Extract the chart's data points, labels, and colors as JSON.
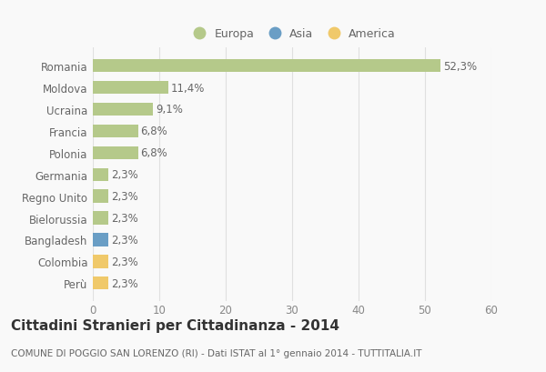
{
  "categories": [
    "Romania",
    "Moldova",
    "Ucraina",
    "Francia",
    "Polonia",
    "Germania",
    "Regno Unito",
    "Bielorussia",
    "Bangladesh",
    "Colombia",
    "Perù"
  ],
  "values": [
    52.3,
    11.4,
    9.1,
    6.8,
    6.8,
    2.3,
    2.3,
    2.3,
    2.3,
    2.3,
    2.3
  ],
  "bar_colors": [
    "#b5c98a",
    "#b5c98a",
    "#b5c98a",
    "#b5c98a",
    "#b5c98a",
    "#b5c98a",
    "#b5c98a",
    "#b5c98a",
    "#6a9ec5",
    "#f0c96a",
    "#f0c96a"
  ],
  "labels": [
    "52,3%",
    "11,4%",
    "9,1%",
    "6,8%",
    "6,8%",
    "2,3%",
    "2,3%",
    "2,3%",
    "2,3%",
    "2,3%",
    "2,3%"
  ],
  "legend": [
    {
      "label": "Europa",
      "color": "#b5c98a"
    },
    {
      "label": "Asia",
      "color": "#6a9ec5"
    },
    {
      "label": "America",
      "color": "#f0c96a"
    }
  ],
  "xlim": [
    0,
    60
  ],
  "xticks": [
    0,
    10,
    20,
    30,
    40,
    50,
    60
  ],
  "title": "Cittadini Stranieri per Cittadinanza - 2014",
  "subtitle": "COMUNE DI POGGIO SAN LORENZO (RI) - Dati ISTAT al 1° gennaio 2014 - TUTTITALIA.IT",
  "background_color": "#f9f9f9",
  "grid_color": "#e0e0e0",
  "bar_height": 0.6,
  "label_fontsize": 8.5,
  "tick_fontsize": 8.5,
  "title_fontsize": 11,
  "subtitle_fontsize": 7.5
}
